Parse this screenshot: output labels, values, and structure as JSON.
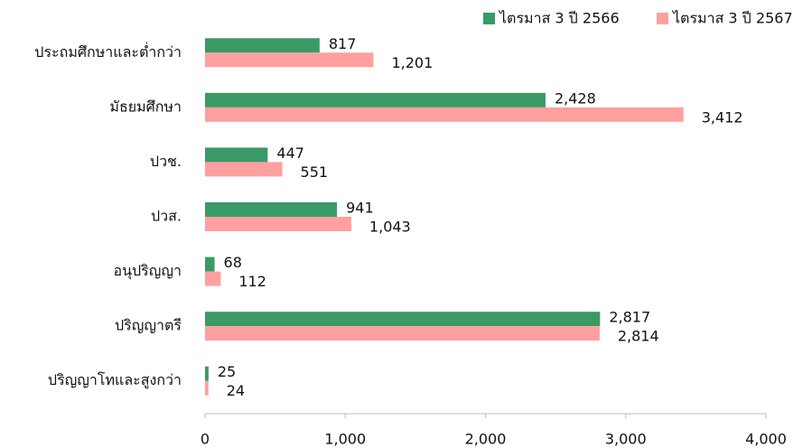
{
  "chart_data": {
    "type": "barh",
    "categories": [
      "ประถมศึกษาและต่ำกว่า",
      "มัธยมศึกษา",
      "ปวช.",
      "ปวส.",
      "อนุปริญญา",
      "ปริญญาตรี",
      "ปริญญาโทและสูงกว่า"
    ],
    "series": [
      {
        "name": "ไตรมาส 3 ปี 2566",
        "color": "#3a9a66",
        "values": [
          817,
          2428,
          447,
          941,
          68,
          2817,
          25
        ],
        "value_labels": [
          "817",
          "2,428",
          "447",
          "941",
          "68",
          "2,817",
          "25"
        ]
      },
      {
        "name": "ไตรมาส 3 ปี 2567",
        "color": "#ff9f9f",
        "values": [
          1201,
          3412,
          551,
          1043,
          112,
          2814,
          24
        ],
        "value_labels": [
          "1,201",
          "3,412",
          "551",
          "1,043",
          "112",
          "2,814",
          "24"
        ]
      }
    ],
    "xlim": [
      0,
      4000
    ],
    "xticks": [
      0,
      {
        "value": 1000,
        "label": "1,000"
      },
      {
        "value": 2000,
        "label": "2,000"
      },
      {
        "value": 3000,
        "label": "3,000"
      },
      {
        "value": 4000,
        "label": "4,000"
      }
    ],
    "legend": "top-right"
  }
}
